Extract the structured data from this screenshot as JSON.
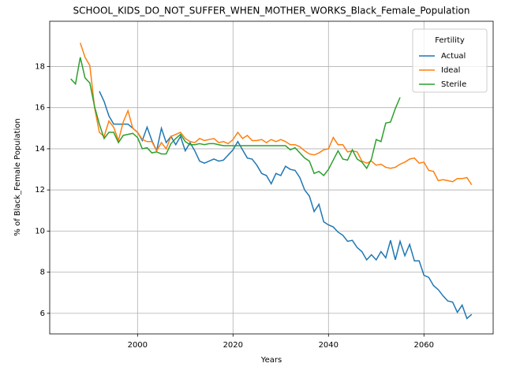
{
  "chart_data": {
    "type": "line",
    "title": "SCHOOL_KIDS_DO_NOT_SUFFER_WHEN_MOTHER_WORKS_Black_Female_Population",
    "xlabel": "Years",
    "ylabel": "% of Black_Female Population",
    "legend_title": "Fertility",
    "legend": "upper right",
    "grid": true,
    "xlim": [
      1981.6,
      2074.5
    ],
    "ylim": [
      5.0,
      20.2
    ],
    "xticks": [
      2000,
      2020,
      2040,
      2060
    ],
    "yticks": [
      6,
      8,
      10,
      12,
      14,
      16,
      18
    ],
    "x": [
      1986,
      1987,
      1988,
      1989,
      1990,
      1991,
      1992,
      1993,
      1994,
      1995,
      1996,
      1997,
      1998,
      1999,
      2000,
      2001,
      2002,
      2003,
      2004,
      2005,
      2006,
      2007,
      2008,
      2009,
      2010,
      2011,
      2012,
      2013,
      2014,
      2015,
      2016,
      2017,
      2018,
      2019,
      2020,
      2021,
      2022,
      2023,
      2024,
      2025,
      2026,
      2027,
      2028,
      2029,
      2030,
      2031,
      2032,
      2033,
      2034,
      2035,
      2036,
      2037,
      2038,
      2039,
      2040,
      2041,
      2042,
      2043,
      2044,
      2045,
      2046,
      2047,
      2048,
      2049,
      2050,
      2051,
      2052,
      2053,
      2054,
      2055,
      2056,
      2057,
      2058,
      2059,
      2060,
      2061,
      2062,
      2063,
      2064,
      2065,
      2066,
      2067,
      2068,
      2069,
      2070
    ],
    "series": [
      {
        "name": "Actual",
        "color": "#1f77b4",
        "values": [
          null,
          null,
          null,
          null,
          null,
          null,
          16.8,
          16.3,
          15.6,
          15.2,
          15.2,
          15.2,
          15.2,
          15.0,
          14.8,
          14.4,
          15.05,
          14.4,
          13.9,
          15.0,
          14.3,
          14.6,
          14.2,
          14.6,
          13.9,
          14.3,
          13.9,
          13.4,
          13.3,
          13.4,
          13.5,
          13.4,
          13.45,
          13.7,
          13.95,
          14.35,
          13.95,
          13.55,
          13.5,
          13.2,
          12.8,
          12.7,
          12.3,
          12.8,
          12.7,
          13.15,
          13.0,
          12.95,
          12.6,
          12.0,
          11.7,
          10.95,
          11.3,
          10.45,
          10.3,
          10.2,
          9.95,
          9.8,
          9.5,
          9.55,
          9.2,
          9.0,
          8.6,
          8.85,
          8.6,
          9.0,
          8.7,
          9.55,
          8.6,
          9.5,
          8.8,
          9.35,
          8.55,
          8.55,
          7.85,
          7.75,
          7.35,
          7.15,
          6.85,
          6.6,
          6.55,
          6.05,
          6.4,
          5.75,
          5.95
        ]
      },
      {
        "name": "Ideal",
        "color": "#ff7f0e",
        "values": [
          null,
          null,
          19.15,
          18.45,
          18.05,
          16.0,
          14.8,
          14.6,
          15.35,
          15.05,
          14.4,
          15.3,
          15.85,
          15.0,
          14.8,
          14.45,
          14.35,
          14.35,
          13.9,
          14.3,
          14.0,
          14.6,
          14.7,
          14.8,
          14.5,
          14.35,
          14.3,
          14.5,
          14.4,
          14.45,
          14.5,
          14.3,
          14.35,
          14.25,
          14.45,
          14.8,
          14.5,
          14.65,
          14.4,
          14.4,
          14.45,
          14.3,
          14.45,
          14.35,
          14.45,
          14.35,
          14.2,
          14.2,
          14.1,
          13.9,
          13.75,
          13.7,
          13.8,
          13.95,
          14.0,
          14.55,
          14.2,
          14.2,
          13.85,
          13.9,
          13.85,
          13.4,
          13.3,
          13.4,
          13.2,
          13.25,
          13.1,
          13.05,
          13.1,
          13.25,
          13.35,
          13.5,
          13.55,
          13.3,
          13.35,
          12.95,
          12.9,
          12.45,
          12.5,
          12.45,
          12.4,
          12.55,
          12.55,
          12.6,
          12.25
        ]
      },
      {
        "name": "Sterile",
        "color": "#2ca02c",
        "values": [
          17.4,
          17.15,
          18.45,
          17.45,
          17.2,
          16.05,
          15.2,
          14.5,
          14.8,
          14.8,
          14.3,
          14.65,
          14.7,
          14.75,
          14.55,
          14.0,
          14.05,
          13.8,
          13.85,
          13.75,
          13.75,
          14.25,
          14.5,
          14.7,
          14.35,
          14.2,
          14.2,
          14.25,
          14.2,
          14.25,
          14.25,
          14.2,
          14.15,
          14.15,
          14.15,
          14.15,
          14.15,
          14.15,
          14.15,
          14.15,
          14.15,
          14.15,
          14.15,
          14.15,
          14.15,
          14.15,
          13.95,
          14.05,
          13.8,
          13.55,
          13.4,
          12.8,
          12.9,
          12.7,
          13.0,
          13.45,
          13.9,
          13.5,
          13.45,
          13.95,
          13.5,
          13.35,
          13.05,
          13.5,
          14.45,
          14.35,
          15.25,
          15.3,
          15.95,
          16.5,
          null,
          null,
          null,
          null,
          null,
          null,
          null,
          null,
          null,
          null,
          null,
          null,
          null,
          null,
          null
        ]
      }
    ]
  }
}
